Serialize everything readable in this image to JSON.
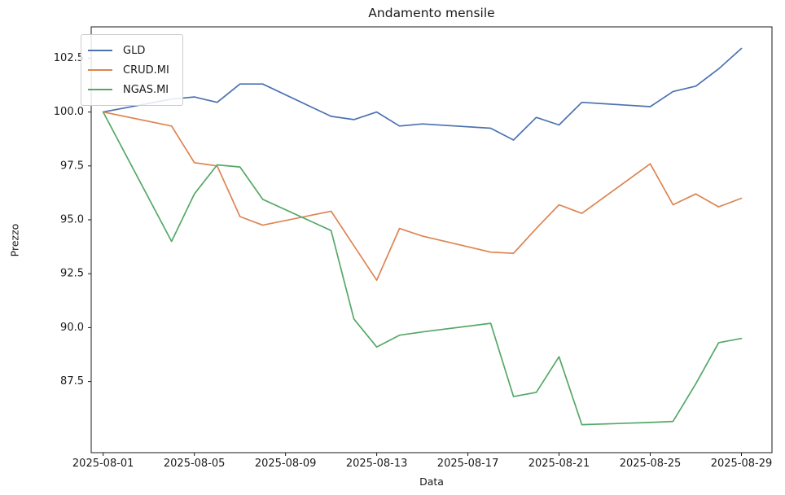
{
  "figure": {
    "title": "Andamento mensile",
    "xlabel": "Data",
    "ylabel": "Prezzo"
  },
  "legend": {
    "position": "upper left",
    "entries": [
      {
        "label": "GLD",
        "color": "#4c72b0"
      },
      {
        "label": "CRUD.MI",
        "color": "#dd8452"
      },
      {
        "label": "NGAS.MI",
        "color": "#55a868"
      }
    ]
  },
  "chart_data": {
    "type": "line",
    "title": "Andamento mensile",
    "xlabel": "Data",
    "ylabel": "Prezzo",
    "grid": false,
    "legend_position": "upper left",
    "x_dates": [
      "2025-08-01",
      "2025-08-04",
      "2025-08-05",
      "2025-08-06",
      "2025-08-07",
      "2025-08-08",
      "2025-08-11",
      "2025-08-12",
      "2025-08-13",
      "2025-08-14",
      "2025-08-15",
      "2025-08-18",
      "2025-08-19",
      "2025-08-20",
      "2025-08-21",
      "2025-08-22",
      "2025-08-25",
      "2025-08-26",
      "2025-08-27",
      "2025-08-28",
      "2025-08-29"
    ],
    "series": [
      {
        "name": "GLD",
        "color": "#4c72b0",
        "values": [
          100.0,
          100.6,
          100.7,
          100.45,
          101.3,
          101.3,
          99.8,
          99.65,
          100.0,
          99.35,
          99.45,
          99.25,
          98.7,
          99.75,
          99.4,
          100.45,
          100.25,
          100.95,
          101.2,
          102.0,
          102.95
        ]
      },
      {
        "name": "CRUD.MI",
        "color": "#dd8452",
        "values": [
          100.0,
          99.35,
          97.65,
          97.5,
          95.15,
          94.75,
          95.4,
          93.8,
          92.2,
          94.6,
          94.25,
          93.5,
          93.45,
          94.6,
          95.7,
          95.3,
          97.6,
          95.7,
          96.2,
          95.6,
          96.0
        ]
      },
      {
        "name": "NGAS.MI",
        "color": "#55a868",
        "values": [
          100.0,
          94.0,
          96.2,
          97.55,
          97.45,
          95.95,
          94.5,
          90.4,
          89.1,
          89.65,
          89.8,
          90.2,
          86.8,
          87.0,
          88.65,
          85.5,
          85.6,
          85.65,
          87.4,
          89.3,
          89.5
        ]
      }
    ],
    "x_tick_labels": [
      "2025-08-01",
      "2025-08-05",
      "2025-08-09",
      "2025-08-13",
      "2025-08-17",
      "2025-08-21",
      "2025-08-25",
      "2025-08-29"
    ],
    "y_tick_labels": [
      "87.5",
      "90.0",
      "92.5",
      "95.0",
      "97.5",
      "100.0",
      "102.5"
    ],
    "xlim_days": [
      0.475,
      30.34
    ],
    "ylim": [
      84.2,
      103.95
    ],
    "axis_color": "#1a1a1a"
  }
}
